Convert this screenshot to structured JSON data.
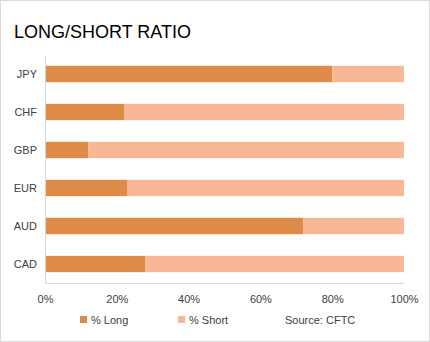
{
  "chart_data": {
    "type": "bar",
    "title": "LONG/SHORT RATIO",
    "categories": [
      "JPY",
      "CHF",
      "GBP",
      "EUR",
      "AUD",
      "CAD"
    ],
    "series": [
      {
        "name": "% Long",
        "color": "#df8b47",
        "values": [
          80,
          22,
          12,
          23,
          72,
          28
        ]
      },
      {
        "name": "% Short",
        "color": "#f8b895",
        "values": [
          20,
          78,
          88,
          77,
          28,
          72
        ]
      }
    ],
    "orientation": "horizontal",
    "stacked": true,
    "grid": false,
    "legend": "bottom",
    "xlim": [
      0,
      100
    ],
    "xticks": [
      {
        "value": 0,
        "label": "0%"
      },
      {
        "value": 20,
        "label": "20%"
      },
      {
        "value": 40,
        "label": "40%"
      },
      {
        "value": 60,
        "label": "60%"
      },
      {
        "value": 80,
        "label": "80%"
      },
      {
        "value": 100,
        "label": "100%"
      }
    ],
    "annotations": [
      "Source: CFTC"
    ]
  }
}
